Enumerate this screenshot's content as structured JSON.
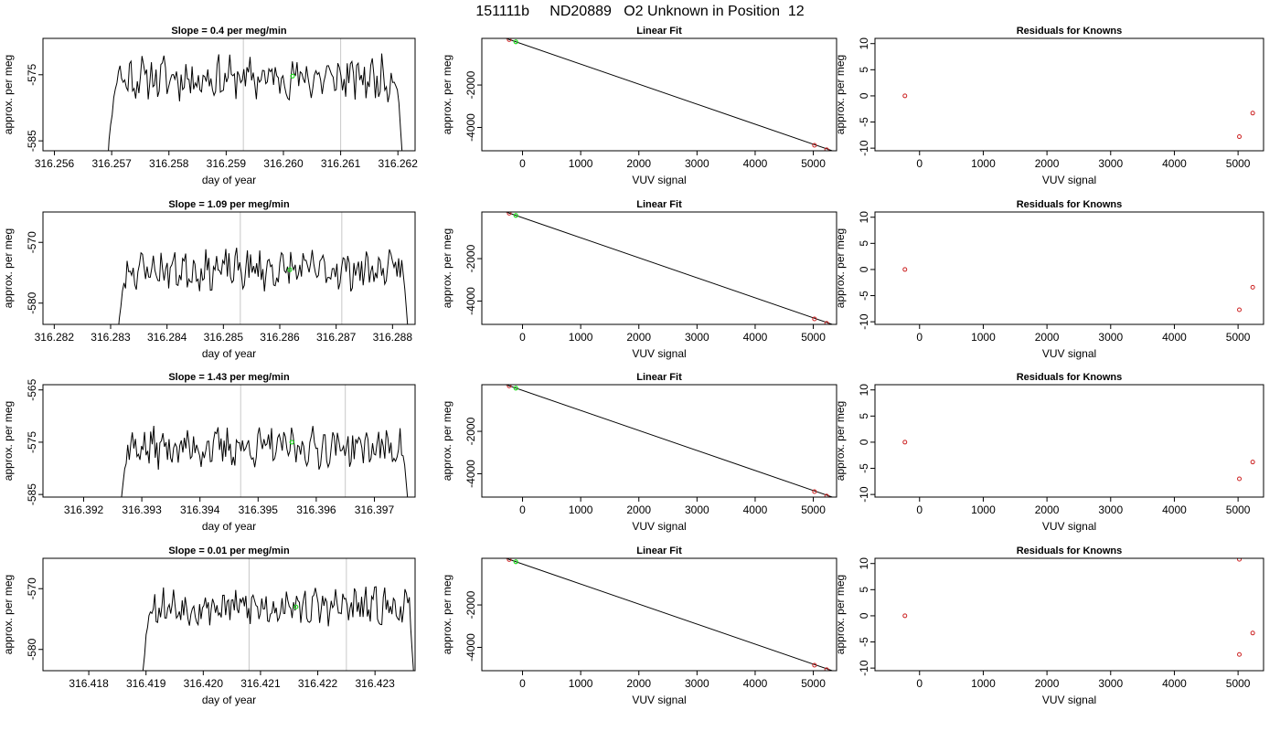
{
  "figure": {
    "title": "151111b     ND20889   O2 Unknown in Position  12"
  },
  "colors": {
    "trace": "#000000",
    "marker_vline": "#c8c8c8",
    "known_points": "#cc2222",
    "unknown_point": "#22dd22",
    "fit_line": "#000000"
  },
  "chart_data": [
    {
      "type": "line",
      "row": 1,
      "col": 1,
      "title": "Slope =  0.4  per meg/min",
      "xlabel": "day of year",
      "ylabel": "approx. per meg",
      "xlim": [
        316.2558,
        316.2623
      ],
      "ylim": [
        -586.5,
        -569.5
      ],
      "xticks": [
        316.256,
        316.257,
        316.258,
        316.259,
        316.26,
        316.261,
        316.262
      ],
      "xtick_labels": [
        "316.256",
        "316.257",
        "316.258",
        "316.259",
        "316.260",
        "316.261",
        "316.262"
      ],
      "yticks": [
        -575,
        -585
      ],
      "ytick_labels": [
        "-575",
        "-585"
      ],
      "vlines": [
        316.2593,
        316.261
      ],
      "trace_start": 316.2569,
      "trace_end": 316.2621,
      "trace_level": -575.5,
      "trace_seed": 11,
      "trace_amp": 2.6,
      "unknown_point": {
        "x": 316.26016,
        "y": -575.2
      }
    },
    {
      "type": "scatter",
      "row": 1,
      "col": 2,
      "title": "Linear Fit",
      "xlabel": "VUV signal",
      "ylabel": "approx. per meg",
      "xlim": [
        -700,
        5400
      ],
      "ylim": [
        -5100,
        200
      ],
      "xticks": [
        0,
        1000,
        2000,
        3000,
        4000,
        5000
      ],
      "xtick_labels": [
        "0",
        "1000",
        "2000",
        "3000",
        "4000",
        "5000"
      ],
      "yticks": [
        -2000,
        -4000
      ],
      "ytick_labels": [
        "-2000",
        "-4000"
      ],
      "fit_line": [
        [
          -550,
          450
        ],
        [
          5380,
          -5150
        ]
      ],
      "known_points": [
        [
          -230,
          142
        ],
        [
          5020,
          -4842
        ],
        [
          5230,
          -5050
        ]
      ],
      "unknown_point": {
        "x": -115,
        "y": 37
      }
    },
    {
      "type": "scatter",
      "row": 1,
      "col": 3,
      "title": "Residuals for Knowns",
      "xlabel": "VUV signal",
      "ylabel": "approx. per meg",
      "xlim": [
        -700,
        5400
      ],
      "ylim": [
        -10.5,
        11
      ],
      "xticks": [
        0,
        1000,
        2000,
        3000,
        4000,
        5000
      ],
      "xtick_labels": [
        "0",
        "1000",
        "2000",
        "3000",
        "4000",
        "5000"
      ],
      "yticks": [
        10,
        5,
        0,
        -5,
        -10
      ],
      "ytick_labels": [
        "10",
        "5",
        "0",
        "-5",
        "-10"
      ],
      "known_points": [
        [
          -230,
          0
        ],
        [
          5020,
          -7.8
        ],
        [
          5230,
          -3.3
        ]
      ]
    },
    {
      "type": "line",
      "row": 2,
      "col": 1,
      "title": "Slope =  1.09  per meg/min",
      "xlabel": "day of year",
      "ylabel": "approx. per meg",
      "xlim": [
        316.2818,
        316.2884
      ],
      "ylim": [
        -583.5,
        -565
      ],
      "xticks": [
        316.282,
        316.283,
        316.284,
        316.285,
        316.286,
        316.287,
        316.288
      ],
      "xtick_labels": [
        "316.282",
        "316.283",
        "316.284",
        "316.285",
        "316.286",
        "316.287",
        "316.288"
      ],
      "yticks": [
        -570,
        -580
      ],
      "ytick_labels": [
        "-570",
        "-580"
      ],
      "vlines": [
        316.2853,
        316.2871
      ],
      "trace_start": 316.2831,
      "trace_end": 316.2883,
      "trace_level": -574.5,
      "trace_seed": 23,
      "trace_amp": 2.6,
      "unknown_point": {
        "x": 316.28618,
        "y": -574.5
      }
    },
    {
      "type": "scatter",
      "row": 2,
      "col": 2,
      "title": "Linear Fit",
      "xlabel": "VUV signal",
      "ylabel": "approx. per meg",
      "xlim": [
        -700,
        5400
      ],
      "ylim": [
        -5100,
        200
      ],
      "xticks": [
        0,
        1000,
        2000,
        3000,
        4000,
        5000
      ],
      "xtick_labels": [
        "0",
        "1000",
        "2000",
        "3000",
        "4000",
        "5000"
      ],
      "yticks": [
        -2000,
        -4000
      ],
      "ytick_labels": [
        "-2000",
        "-4000"
      ],
      "fit_line": [
        [
          -550,
          450
        ],
        [
          5380,
          -5150
        ]
      ],
      "known_points": [
        [
          -230,
          142
        ],
        [
          5020,
          -4842
        ],
        [
          5230,
          -5050
        ]
      ],
      "unknown_point": {
        "x": -115,
        "y": 37
      }
    },
    {
      "type": "scatter",
      "row": 2,
      "col": 3,
      "title": "Residuals for Knowns",
      "xlabel": "VUV signal",
      "ylabel": "approx. per meg",
      "xlim": [
        -700,
        5400
      ],
      "ylim": [
        -10.5,
        11
      ],
      "xticks": [
        0,
        1000,
        2000,
        3000,
        4000,
        5000
      ],
      "xtick_labels": [
        "0",
        "1000",
        "2000",
        "3000",
        "4000",
        "5000"
      ],
      "yticks": [
        10,
        5,
        0,
        -5,
        -10
      ],
      "ytick_labels": [
        "10",
        "5",
        "0",
        "-5",
        "-10"
      ],
      "known_points": [
        [
          -230,
          0
        ],
        [
          5020,
          -7.7
        ],
        [
          5230,
          -3.4
        ]
      ]
    },
    {
      "type": "line",
      "row": 3,
      "col": 1,
      "title": "Slope =  1.43  per meg/min",
      "xlabel": "day of year",
      "ylabel": "approx. per meg",
      "xlim": [
        316.3913,
        316.3977
      ],
      "ylim": [
        -585.5,
        -564
      ],
      "xticks": [
        316.392,
        316.393,
        316.394,
        316.395,
        316.396,
        316.397
      ],
      "xtick_labels": [
        "316.392",
        "316.393",
        "316.394",
        "316.395",
        "316.396",
        "316.397"
      ],
      "yticks": [
        -565,
        -575,
        -585
      ],
      "ytick_labels": [
        "-565",
        "-575",
        "-585"
      ],
      "vlines": [
        316.3947,
        316.3965
      ],
      "trace_start": 316.3926,
      "trace_end": 316.3976,
      "trace_level": -576.0,
      "trace_seed": 37,
      "trace_amp": 3.0,
      "unknown_point": {
        "x": 316.39558,
        "y": -575.0
      }
    },
    {
      "type": "scatter",
      "row": 3,
      "col": 2,
      "title": "Linear Fit",
      "xlabel": "VUV signal",
      "ylabel": "approx. per meg",
      "xlim": [
        -700,
        5400
      ],
      "ylim": [
        -5100,
        200
      ],
      "xticks": [
        0,
        1000,
        2000,
        3000,
        4000,
        5000
      ],
      "xtick_labels": [
        "0",
        "1000",
        "2000",
        "3000",
        "4000",
        "5000"
      ],
      "yticks": [
        -2000,
        -4000
      ],
      "ytick_labels": [
        "-2000",
        "-4000"
      ],
      "fit_line": [
        [
          -550,
          450
        ],
        [
          5380,
          -5150
        ]
      ],
      "known_points": [
        [
          -230,
          142
        ],
        [
          5020,
          -4842
        ],
        [
          5230,
          -5050
        ]
      ],
      "unknown_point": {
        "x": -115,
        "y": 37
      }
    },
    {
      "type": "scatter",
      "row": 3,
      "col": 3,
      "title": "Residuals for Knowns",
      "xlabel": "VUV signal",
      "ylabel": "approx. per meg",
      "xlim": [
        -700,
        5400
      ],
      "ylim": [
        -10.5,
        11
      ],
      "xticks": [
        0,
        1000,
        2000,
        3000,
        4000,
        5000
      ],
      "xtick_labels": [
        "0",
        "1000",
        "2000",
        "3000",
        "4000",
        "5000"
      ],
      "yticks": [
        10,
        5,
        0,
        -5,
        -10
      ],
      "ytick_labels": [
        "10",
        "5",
        "0",
        "-5",
        "-10"
      ],
      "known_points": [
        [
          -230,
          0
        ],
        [
          5020,
          -7.0
        ],
        [
          5230,
          -3.8
        ]
      ]
    },
    {
      "type": "line",
      "row": 4,
      "col": 1,
      "title": "Slope =  0.01  per meg/min",
      "xlabel": "day of year",
      "ylabel": "approx. per meg",
      "xlim": [
        316.4172,
        316.4237
      ],
      "ylim": [
        -583.5,
        -565
      ],
      "xticks": [
        316.418,
        316.419,
        316.42,
        316.421,
        316.422,
        316.423
      ],
      "xtick_labels": [
        "316.418",
        "316.419",
        "316.420",
        "316.421",
        "316.422",
        "316.423"
      ],
      "yticks": [
        -570,
        -580
      ],
      "ytick_labels": [
        "-570",
        "-580"
      ],
      "vlines": [
        316.4208,
        316.4225
      ],
      "trace_start": 316.4189,
      "trace_end": 316.4237,
      "trace_level": -573.0,
      "trace_seed": 53,
      "trace_amp": 2.5,
      "unknown_point": {
        "x": 316.42162,
        "y": -573.0
      }
    },
    {
      "type": "scatter",
      "row": 4,
      "col": 2,
      "title": "Linear Fit",
      "xlabel": "VUV signal",
      "ylabel": "approx. per meg",
      "xlim": [
        -700,
        5400
      ],
      "ylim": [
        -5100,
        200
      ],
      "xticks": [
        0,
        1000,
        2000,
        3000,
        4000,
        5000
      ],
      "xtick_labels": [
        "0",
        "1000",
        "2000",
        "3000",
        "4000",
        "5000"
      ],
      "yticks": [
        -2000,
        -4000
      ],
      "ytick_labels": [
        "-2000",
        "-4000"
      ],
      "fit_line": [
        [
          -550,
          450
        ],
        [
          5380,
          -5150
        ]
      ],
      "known_points": [
        [
          -230,
          142
        ],
        [
          5020,
          -4842
        ],
        [
          5230,
          -5050
        ]
      ],
      "unknown_point": {
        "x": -115,
        "y": 37
      }
    },
    {
      "type": "scatter",
      "row": 4,
      "col": 3,
      "title": "Residuals for Knowns",
      "xlabel": "VUV signal",
      "ylabel": "approx. per meg",
      "xlim": [
        -700,
        5400
      ],
      "ylim": [
        -10.5,
        11
      ],
      "xticks": [
        0,
        1000,
        2000,
        3000,
        4000,
        5000
      ],
      "xtick_labels": [
        "0",
        "1000",
        "2000",
        "3000",
        "4000",
        "5000"
      ],
      "yticks": [
        10,
        5,
        0,
        -5,
        -10
      ],
      "ytick_labels": [
        "10",
        "5",
        "0",
        "-5",
        "-10"
      ],
      "known_points": [
        [
          -230,
          0
        ],
        [
          5020,
          -7.4
        ],
        [
          5230,
          -3.3
        ],
        [
          5020,
          10.8
        ]
      ]
    }
  ]
}
